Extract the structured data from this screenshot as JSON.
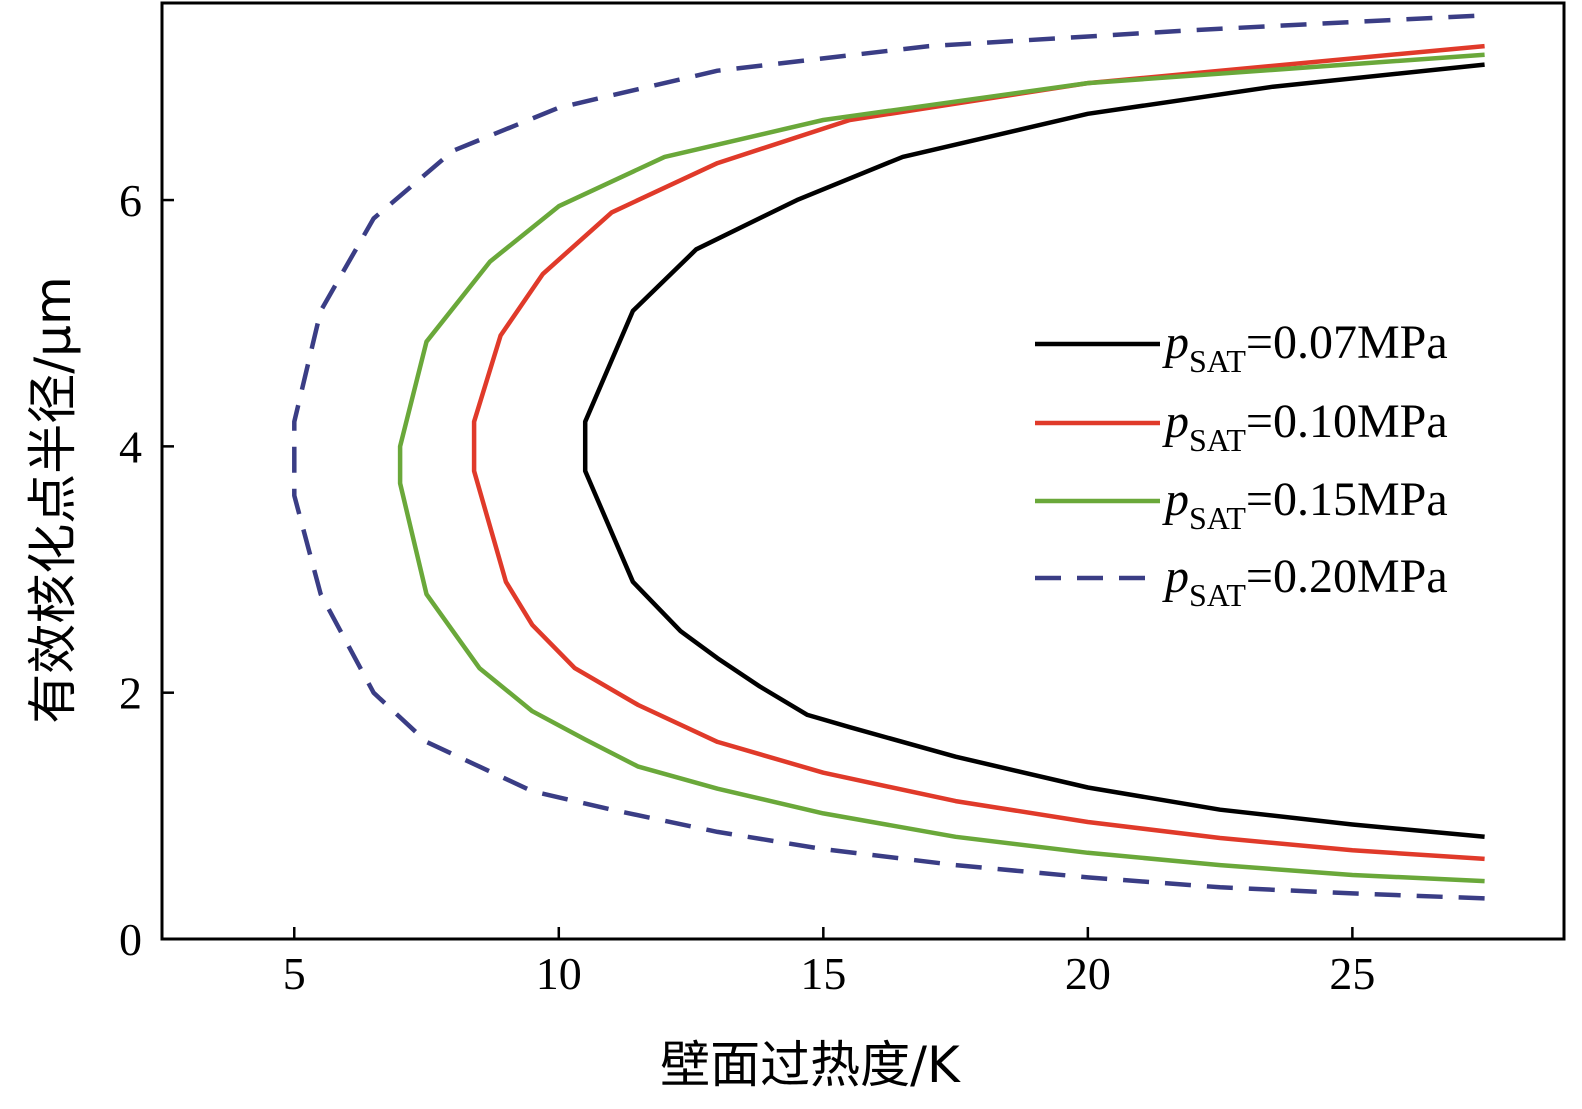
{
  "chart_data": {
    "type": "line",
    "xlabel": "壁面过热度/K",
    "ylabel": "有效核化点半径/μm",
    "xlim": [
      2.5,
      29
    ],
    "ylim": [
      0,
      7.6
    ],
    "xticks": [
      5,
      10,
      15,
      20,
      25
    ],
    "yticks": [
      0,
      2,
      4,
      6
    ],
    "legend": {
      "position": "right",
      "pressure_symbol": "p",
      "subscript": "SAT"
    },
    "series": [
      {
        "name": "=0.07MPa",
        "color": "#000000",
        "dash": "solid",
        "points": [
          [
            27.5,
            0.83
          ],
          [
            25.0,
            0.93
          ],
          [
            22.5,
            1.05
          ],
          [
            20.0,
            1.23
          ],
          [
            17.5,
            1.48
          ],
          [
            15.5,
            1.72
          ],
          [
            14.7,
            1.82
          ],
          [
            13.8,
            2.05
          ],
          [
            13.0,
            2.28
          ],
          [
            12.3,
            2.5
          ],
          [
            11.4,
            2.9
          ],
          [
            10.5,
            3.8
          ],
          [
            10.5,
            4.2
          ],
          [
            11.4,
            5.1
          ],
          [
            12.6,
            5.6
          ],
          [
            14.5,
            6.0
          ],
          [
            16.5,
            6.35
          ],
          [
            20.0,
            6.7
          ],
          [
            23.5,
            6.92
          ],
          [
            27.5,
            7.1
          ]
        ]
      },
      {
        "name": "=0.10MPa",
        "color": "#e03a2a",
        "dash": "solid",
        "points": [
          [
            27.5,
            0.65
          ],
          [
            25.0,
            0.72
          ],
          [
            22.5,
            0.82
          ],
          [
            20.0,
            0.95
          ],
          [
            17.5,
            1.12
          ],
          [
            15.0,
            1.35
          ],
          [
            13.0,
            1.6
          ],
          [
            11.5,
            1.9
          ],
          [
            10.3,
            2.2
          ],
          [
            9.5,
            2.55
          ],
          [
            9.0,
            2.9
          ],
          [
            8.4,
            3.8
          ],
          [
            8.4,
            4.2
          ],
          [
            8.9,
            4.9
          ],
          [
            9.7,
            5.4
          ],
          [
            11.0,
            5.9
          ],
          [
            13.0,
            6.3
          ],
          [
            15.5,
            6.65
          ],
          [
            20.0,
            6.95
          ],
          [
            27.5,
            7.25
          ]
        ]
      },
      {
        "name": "=0.15MPa",
        "color": "#6aa83a",
        "dash": "solid",
        "points": [
          [
            27.5,
            0.47
          ],
          [
            25.0,
            0.52
          ],
          [
            22.5,
            0.6
          ],
          [
            20.0,
            0.7
          ],
          [
            17.5,
            0.83
          ],
          [
            15.0,
            1.02
          ],
          [
            13.0,
            1.22
          ],
          [
            11.5,
            1.4
          ],
          [
            10.5,
            1.62
          ],
          [
            9.5,
            1.85
          ],
          [
            8.5,
            2.2
          ],
          [
            7.5,
            2.8
          ],
          [
            7.0,
            3.7
          ],
          [
            7.0,
            4.0
          ],
          [
            7.5,
            4.85
          ],
          [
            8.7,
            5.5
          ],
          [
            10.0,
            5.95
          ],
          [
            12.0,
            6.35
          ],
          [
            15.0,
            6.65
          ],
          [
            20.0,
            6.95
          ],
          [
            27.5,
            7.18
          ]
        ]
      },
      {
        "name": "=0.20MPa",
        "color": "#3a3d85",
        "dash": "dashed",
        "points": [
          [
            27.5,
            0.33
          ],
          [
            25.0,
            0.37
          ],
          [
            22.5,
            0.42
          ],
          [
            20.0,
            0.5
          ],
          [
            17.5,
            0.6
          ],
          [
            15.0,
            0.73
          ],
          [
            13.0,
            0.87
          ],
          [
            11.0,
            1.05
          ],
          [
            9.5,
            1.2
          ],
          [
            8.5,
            1.4
          ],
          [
            7.5,
            1.6
          ],
          [
            6.5,
            2.0
          ],
          [
            5.5,
            2.8
          ],
          [
            5.0,
            3.6
          ],
          [
            5.0,
            4.2
          ],
          [
            5.5,
            5.1
          ],
          [
            6.5,
            5.85
          ],
          [
            8.0,
            6.4
          ],
          [
            10.0,
            6.75
          ],
          [
            13.0,
            7.05
          ],
          [
            17.0,
            7.25
          ],
          [
            22.0,
            7.38
          ],
          [
            27.5,
            7.5
          ]
        ]
      }
    ]
  }
}
